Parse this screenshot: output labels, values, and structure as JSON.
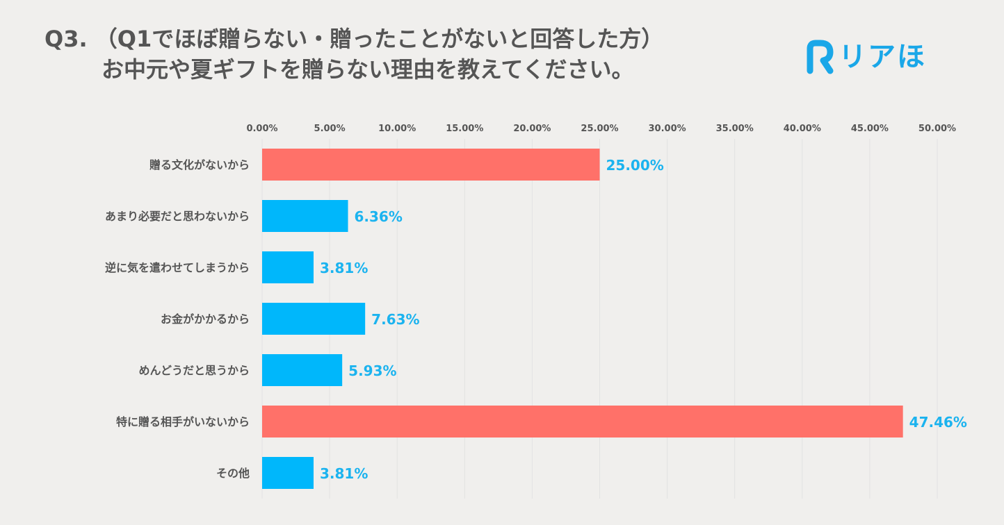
{
  "chart_data": {
    "type": "bar",
    "orientation": "horizontal",
    "title_line1": "Q3. （Q1でほぼ贈らない・贈ったことがないと回答した方）",
    "title_line2": "お中元や夏ギフトを贈らない理由を教えてください。",
    "categories": [
      "贈る文化がないから",
      "あまり必要だと思わないから",
      "逆に気を遣わせてしまうから",
      "お金がかかるから",
      "めんどうだと思うから",
      "特に贈る相手がいないから",
      "その他"
    ],
    "values": [
      25.0,
      6.36,
      3.81,
      7.63,
      5.93,
      47.46,
      3.81
    ],
    "value_labels": [
      "25.00%",
      "6.36%",
      "3.81%",
      "7.63%",
      "5.93%",
      "47.46%",
      "3.81%"
    ],
    "xlim": [
      0,
      50
    ],
    "xticks": [
      0,
      5,
      10,
      15,
      20,
      25,
      30,
      35,
      40,
      45,
      50
    ],
    "xtick_labels": [
      "0.00%",
      "5.00%",
      "10.00%",
      "15.00%",
      "20.00%",
      "25.00%",
      "30.00%",
      "35.00%",
      "40.00%",
      "45.00%",
      "50.00%"
    ],
    "xlabel": "",
    "ylabel": "",
    "grid": true,
    "highlighted": [
      0,
      5
    ],
    "colors": {
      "bar": "#00b7fb",
      "highlight": "#ff7169",
      "label": "#1bb3ef",
      "text": "#555555",
      "grid": "#e2e2e2"
    }
  },
  "logo": {
    "text": "リアほ",
    "color": "#1aa7e8"
  }
}
